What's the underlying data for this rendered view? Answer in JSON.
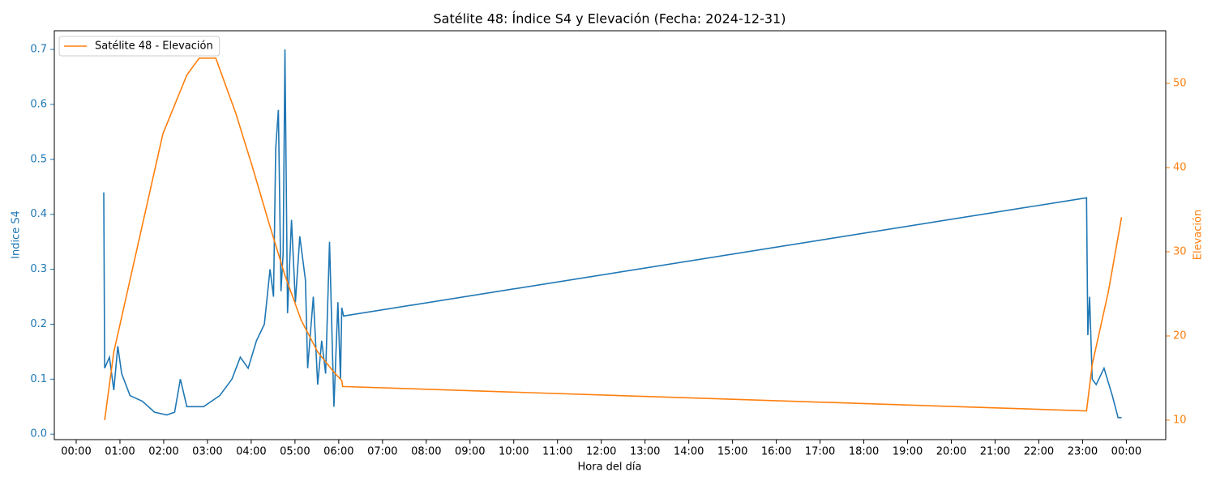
{
  "chart_data": {
    "type": "line",
    "title": "Satélite 48: Índice S4 y Elevación (Fecha: 2024-12-31)",
    "xlabel": "Hora del día",
    "ylabel": "Indice S4",
    "y2label": "Elevación",
    "xlim": [
      -0.5,
      24.9
    ],
    "ylim": [
      -0.01,
      0.734
    ],
    "y2lim": [
      7.69,
      56.25
    ],
    "xticks": [
      {
        "value": 0,
        "label": "00:00"
      },
      {
        "value": 1,
        "label": "01:00"
      },
      {
        "value": 2,
        "label": "02:00"
      },
      {
        "value": 3,
        "label": "03:00"
      },
      {
        "value": 4,
        "label": "04:00"
      },
      {
        "value": 5,
        "label": "05:00"
      },
      {
        "value": 6,
        "label": "06:00"
      },
      {
        "value": 7,
        "label": "07:00"
      },
      {
        "value": 8,
        "label": "08:00"
      },
      {
        "value": 9,
        "label": "09:00"
      },
      {
        "value": 10,
        "label": "10:00"
      },
      {
        "value": 11,
        "label": "11:00"
      },
      {
        "value": 12,
        "label": "12:00"
      },
      {
        "value": 13,
        "label": "13:00"
      },
      {
        "value": 14,
        "label": "14:00"
      },
      {
        "value": 15,
        "label": "15:00"
      },
      {
        "value": 16,
        "label": "16:00"
      },
      {
        "value": 17,
        "label": "17:00"
      },
      {
        "value": 18,
        "label": "18:00"
      },
      {
        "value": 19,
        "label": "19:00"
      },
      {
        "value": 20,
        "label": "20:00"
      },
      {
        "value": 21,
        "label": "21:00"
      },
      {
        "value": 22,
        "label": "22:00"
      },
      {
        "value": 23,
        "label": "23:00"
      },
      {
        "value": 24,
        "label": "00:00"
      }
    ],
    "yticks": [
      {
        "value": 0,
        "label": "0.0"
      },
      0.1,
      0.2,
      0.3,
      0.4,
      0.5,
      0.6,
      0.7
    ],
    "y2ticks": [
      10,
      20,
      30,
      40,
      50
    ],
    "legend": "upper left",
    "series": [
      {
        "color": "#1f77b4",
        "x": [
          0.63,
          0.65,
          0.76,
          0.86,
          0.95,
          1.04,
          1.23,
          1.51,
          1.79,
          2.07,
          2.25,
          2.38,
          2.53,
          2.91,
          3.28,
          3.56,
          3.75,
          3.93,
          4.12,
          4.3,
          4.43,
          4.51,
          4.56,
          4.62,
          4.68,
          4.73,
          4.77,
          4.83,
          4.92,
          5.01,
          5.11,
          5.24,
          5.29,
          5.42,
          5.52,
          5.61,
          5.7,
          5.79,
          5.89,
          5.98,
          6.04,
          6.07,
          6.11,
          23.09,
          23.12,
          23.16,
          23.22,
          23.31,
          23.49,
          23.68,
          23.81,
          23.89
        ],
        "values": [
          0.44,
          0.12,
          0.14,
          0.08,
          0.16,
          0.11,
          0.07,
          0.06,
          0.04,
          0.035,
          0.04,
          0.1,
          0.05,
          0.05,
          0.07,
          0.1,
          0.14,
          0.12,
          0.17,
          0.2,
          0.3,
          0.25,
          0.52,
          0.59,
          0.26,
          0.33,
          0.7,
          0.22,
          0.39,
          0.24,
          0.36,
          0.28,
          0.12,
          0.25,
          0.09,
          0.17,
          0.11,
          0.35,
          0.05,
          0.24,
          0.1,
          0.23,
          0.215,
          0.43,
          0.18,
          0.25,
          0.1,
          0.09,
          0.12,
          0.07,
          0.03,
          0.03
        ]
      },
      {
        "name": "Satélite 48 - Elevación",
        "color": "#ff7f0e",
        "axis": "y2",
        "x": [
          0.65,
          0.86,
          1.98,
          2.53,
          2.81,
          3.19,
          3.65,
          4.02,
          4.4,
          4.77,
          5.14,
          5.52,
          5.89,
          6.07,
          6.09,
          23.09,
          23.22,
          23.59,
          23.89
        ],
        "values": [
          10,
          18.1,
          44,
          51,
          53,
          53,
          46.4,
          40.2,
          33.5,
          27.2,
          21.9,
          18.1,
          15.7,
          14.7,
          14.0,
          11.1,
          16.6,
          25.3,
          34.1
        ]
      }
    ]
  }
}
